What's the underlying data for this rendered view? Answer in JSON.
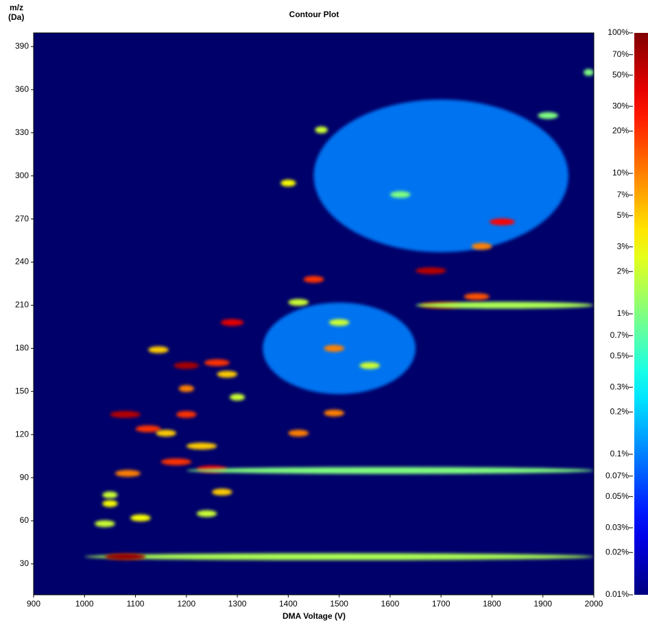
{
  "chart_data": {
    "type": "heatmap",
    "title": "Contour Plot",
    "xlabel": "DMA Voltage (V)",
    "ylabel": [
      "m/z",
      "(Da)"
    ],
    "background": "#00006a",
    "colormap": "jet",
    "xlim": [
      900,
      2000
    ],
    "xticks": [
      900,
      1000,
      1100,
      1200,
      1300,
      1400,
      1500,
      1600,
      1700,
      1800,
      1900,
      2000
    ],
    "ylim": [
      8.5,
      399.5
    ],
    "yticks": [
      30,
      60,
      90,
      120,
      150,
      180,
      210,
      240,
      270,
      300,
      330,
      360,
      390
    ],
    "clim": [
      0.01,
      100
    ],
    "clog": true,
    "cticks": [
      {
        "value": 100,
        "label": "100%"
      },
      {
        "value": 70,
        "label": "70%"
      },
      {
        "value": 50,
        "label": "50%"
      },
      {
        "value": 30,
        "label": "30%"
      },
      {
        "value": 20,
        "label": "20%"
      },
      {
        "value": 10,
        "label": "10%"
      },
      {
        "value": 7,
        "label": "7%"
      },
      {
        "value": 5,
        "label": "5%"
      },
      {
        "value": 3,
        "label": "3%"
      },
      {
        "value": 2,
        "label": "2%"
      },
      {
        "value": 1,
        "label": "1%"
      },
      {
        "value": 0.7,
        "label": "0.7%"
      },
      {
        "value": 0.5,
        "label": "0.5%"
      },
      {
        "value": 0.3,
        "label": "0.3%"
      },
      {
        "value": 0.2,
        "label": "0.2%"
      },
      {
        "value": 0.1,
        "label": "0.1%"
      },
      {
        "value": 0.07,
        "label": "0.07%"
      },
      {
        "value": 0.05,
        "label": "0.05%"
      },
      {
        "value": 0.03,
        "label": "0.03%"
      },
      {
        "value": 0.02,
        "label": "0.02%"
      },
      {
        "value": 0.01,
        "label": "0.01%"
      }
    ],
    "x": [
      1700,
      1500,
      1500,
      1080,
      1080,
      1200,
      1200,
      1145,
      1290,
      1260,
      1280,
      1200,
      1125,
      1160,
      1180,
      1250,
      1085,
      1600,
      1230,
      1420,
      1490,
      1490,
      1450,
      1400,
      1465,
      1680,
      1700,
      1825,
      1770,
      1820,
      1780,
      1040,
      1050,
      1050,
      1110,
      1270,
      1240,
      1560,
      1500,
      1620,
      1910,
      1990,
      1420,
      1300
    ],
    "y": [
      300,
      180,
      35,
      35,
      134,
      168,
      134,
      179,
      198,
      170,
      162,
      152,
      124,
      121,
      101,
      96,
      93,
      95,
      112,
      121,
      135,
      180,
      228,
      295,
      332,
      234,
      210,
      210,
      216,
      268,
      251,
      58,
      72,
      78,
      62,
      80,
      65,
      168,
      198,
      287,
      342,
      372,
      212,
      146
    ],
    "widths": [
      500,
      300,
      1000,
      80,
      60,
      50,
      40,
      40,
      45,
      50,
      40,
      30,
      50,
      40,
      60,
      60,
      50,
      800,
      60,
      40,
      40,
      40,
      40,
      30,
      25,
      60,
      80,
      350,
      50,
      50,
      40,
      40,
      30,
      30,
      40,
      40,
      40,
      40,
      40,
      40,
      40,
      20,
      40,
      30
    ],
    "values": [
      0.1,
      0.1,
      1.5,
      80,
      60,
      70,
      20,
      5,
      40,
      20,
      5,
      10,
      20,
      5,
      20,
      30,
      10,
      1,
      5,
      10,
      10,
      10,
      20,
      3,
      2,
      60,
      80,
      1.5,
      15,
      30,
      10,
      2,
      3,
      2,
      3,
      5,
      2,
      2,
      2,
      1,
      1,
      1,
      2,
      2
    ]
  }
}
